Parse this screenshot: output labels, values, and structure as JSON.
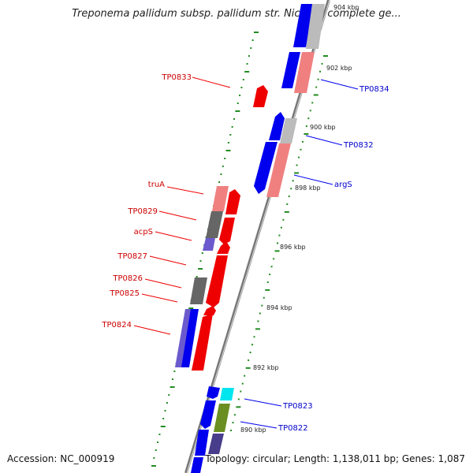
{
  "title": "Treponema pallidum subsp. pallidum str. Nichols, complete ge...",
  "footer": {
    "accession": "Accession: NC_000919",
    "summary": "Topology: circular; Length: 1,138,011 bp; Genes: 1,087"
  },
  "colors": {
    "backbone": "#777777",
    "tick": "#228b22",
    "forward_label": "#cc0000",
    "reverse_label": "#0000cc"
  },
  "kbp_labels": [
    "904 kbp",
    "902 kbp",
    "900 kbp",
    "898 kbp",
    "896 kbp",
    "894 kbp",
    "892 kbp",
    "890 kbp"
  ],
  "gene_labels_left": [
    "TP0833",
    "truA",
    "TP0829",
    "acpS",
    "TP0827",
    "TP0826",
    "TP0825",
    "TP0824"
  ],
  "gene_labels_right": [
    "TP0834",
    "TP0832",
    "argS",
    "TP0823",
    "TP0822"
  ]
}
